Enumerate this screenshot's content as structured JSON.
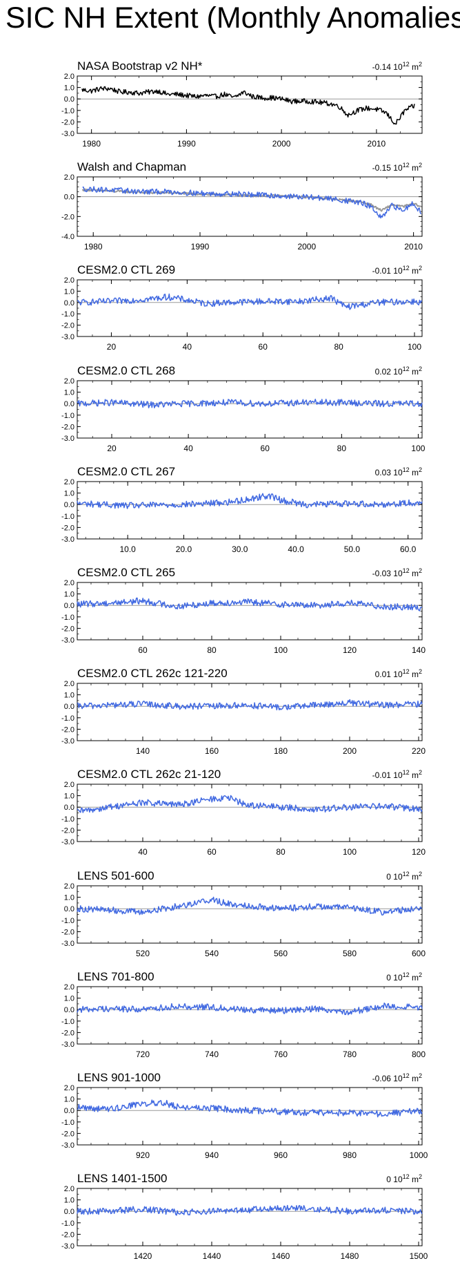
{
  "figure": {
    "title": "SIC NH Extent (Monthly Anomalies)",
    "unit": "10",
    "unit_exp": "12",
    "unit_tail": " m",
    "unit_sq": "2"
  },
  "colors": {
    "obs": "#000000",
    "model": "#4169e1",
    "smooth": "#999999",
    "zero": "#999999"
  },
  "chart_data": [
    {
      "type": "line",
      "title": "NASA Bootstrap v2 NH*",
      "trend": "-0.14",
      "x_range": [
        1978.5,
        2014.8
      ],
      "ylim": [
        -3.0,
        2.0
      ],
      "yticks": [
        "2.0",
        "1.0",
        "0.0",
        "-1.0",
        "-2.0",
        "-3.0"
      ],
      "xticks": [
        1980,
        1990,
        2000,
        2010
      ],
      "xtick_labels": [
        "1980",
        "1990",
        "2000",
        "2010"
      ],
      "series": [
        {
          "color": "obs",
          "x": [
            1979,
            1980,
            1981,
            1982,
            1983,
            1984,
            1985,
            1986,
            1987,
            1988,
            1989,
            1990,
            1991,
            1992,
            1993,
            1994,
            1995,
            1996,
            1997,
            1998,
            1999,
            2000,
            2001,
            2002,
            2003,
            2004,
            2005,
            2006,
            2007,
            2008,
            2009,
            2010,
            2011,
            2012,
            2013,
            2014
          ],
          "y": [
            0.8,
            0.7,
            0.9,
            0.9,
            0.6,
            0.6,
            0.5,
            0.6,
            0.7,
            0.4,
            0.4,
            0.3,
            0.2,
            0.3,
            0.2,
            0.4,
            0.1,
            0.6,
            0.2,
            0.1,
            0.1,
            0.0,
            -0.2,
            -0.2,
            -0.2,
            -0.3,
            -0.4,
            -0.6,
            -1.4,
            -1.0,
            -0.8,
            -0.9,
            -1.2,
            -2.2,
            -1.0,
            -0.6
          ]
        }
      ]
    },
    {
      "type": "line",
      "title": "Walsh and Chapman",
      "trend": "-0.15",
      "x_range": [
        1978.5,
        2010.8
      ],
      "ylim": [
        -4.0,
        2.0
      ],
      "yticks": [
        "2.0",
        "0.0",
        "-2.0",
        "-4.0"
      ],
      "xticks": [
        1980,
        1990,
        2000,
        2010
      ],
      "xtick_labels": [
        "1980",
        "1990",
        "2000",
        "2010"
      ],
      "series": [
        {
          "color": "smooth",
          "x": [
            1979,
            1981,
            1983,
            1985,
            1987,
            1989,
            1991,
            1993,
            1995,
            1997,
            1999,
            2001,
            2003,
            2005,
            2006,
            2007,
            2008,
            2009,
            2010,
            2010.7
          ],
          "y": [
            0.7,
            0.6,
            0.5,
            0.4,
            0.4,
            0.3,
            0.2,
            0.2,
            0.1,
            0.1,
            0.0,
            -0.1,
            -0.3,
            -0.5,
            -0.8,
            -1.4,
            -0.8,
            -1.0,
            -0.7,
            -1.0
          ]
        },
        {
          "color": "model",
          "x": [
            1979,
            1981,
            1983,
            1985,
            1987,
            1989,
            1991,
            1993,
            1995,
            1997,
            1999,
            2001,
            2003,
            2005,
            2006,
            2007,
            2008,
            2009,
            2010,
            2010.7
          ],
          "y": [
            0.8,
            0.7,
            0.6,
            0.5,
            0.5,
            0.4,
            0.3,
            0.3,
            0.2,
            0.1,
            0.0,
            -0.1,
            -0.3,
            -0.6,
            -1.0,
            -2.2,
            -0.9,
            -1.4,
            -0.6,
            -1.6
          ]
        }
      ]
    },
    {
      "type": "line",
      "title": "CESM2.0 CTL 269",
      "trend": "-0.01",
      "x_range": [
        11,
        102
      ],
      "ylim": [
        -3.0,
        2.0
      ],
      "yticks": [
        "2.0",
        "1.0",
        "0.0",
        "-1.0",
        "-2.0",
        "-3.0"
      ],
      "xticks": [
        20,
        40,
        60,
        80,
        100
      ],
      "xtick_labels": [
        "20",
        "40",
        "60",
        "80",
        "100"
      ],
      "series": [
        {
          "color": "model",
          "x": [
            11,
            20,
            30,
            35,
            40,
            45,
            50,
            60,
            70,
            78,
            82,
            90,
            100,
            102
          ],
          "y": [
            0.0,
            0.1,
            0.3,
            0.5,
            0.2,
            -0.1,
            0.0,
            0.1,
            0.1,
            0.4,
            -0.4,
            0.0,
            0.1,
            0.0
          ]
        }
      ]
    },
    {
      "type": "line",
      "title": "CESM2.0 CTL 268",
      "trend": "0.02",
      "x_range": [
        11,
        101
      ],
      "ylim": [
        -3.0,
        2.0
      ],
      "yticks": [
        "2.0",
        "1.0",
        "0.0",
        "-1.0",
        "-2.0",
        "-3.0"
      ],
      "xticks": [
        20,
        40,
        60,
        80,
        100
      ],
      "xtick_labels": [
        "20",
        "40",
        "60",
        "80",
        "100"
      ],
      "series": [
        {
          "color": "model",
          "x": [
            11,
            20,
            30,
            40,
            50,
            60,
            70,
            80,
            90,
            101
          ],
          "y": [
            0.0,
            0.1,
            -0.1,
            0.0,
            0.1,
            0.0,
            0.1,
            0.1,
            0.0,
            0.0
          ]
        }
      ]
    },
    {
      "type": "line",
      "title": "CESM2.0 CTL 267",
      "trend": "0.03",
      "x_range": [
        1,
        62.5
      ],
      "ylim": [
        -3.0,
        2.0
      ],
      "yticks": [
        "2.0",
        "1.0",
        "0.0",
        "-1.0",
        "-2.0",
        "-3.0"
      ],
      "xticks": [
        10,
        20,
        30,
        40,
        50,
        60
      ],
      "xtick_labels": [
        "10.0",
        "20.0",
        "30.0",
        "40.0",
        "50.0",
        "60.0"
      ],
      "series": [
        {
          "color": "model",
          "x": [
            1,
            10,
            20,
            28,
            32,
            35,
            38,
            42,
            50,
            55,
            62.5
          ],
          "y": [
            0.1,
            -0.1,
            0.0,
            0.2,
            0.5,
            0.8,
            0.3,
            0.0,
            0.1,
            0.0,
            0.2
          ]
        }
      ]
    },
    {
      "type": "line",
      "title": "CESM2.0 CTL 265",
      "trend": "-0.03",
      "x_range": [
        41,
        141
      ],
      "ylim": [
        -3.0,
        2.0
      ],
      "yticks": [
        "2.0",
        "1.0",
        "0.0",
        "-1.0",
        "-2.0",
        "-3.0"
      ],
      "xticks": [
        60,
        80,
        100,
        120,
        140
      ],
      "xtick_labels": [
        "60",
        "80",
        "100",
        "120",
        "140"
      ],
      "series": [
        {
          "color": "model",
          "x": [
            41,
            50,
            60,
            70,
            80,
            90,
            100,
            110,
            120,
            130,
            141
          ],
          "y": [
            0.1,
            0.2,
            0.4,
            -0.1,
            0.2,
            0.3,
            0.1,
            0.0,
            0.2,
            -0.1,
            -0.2
          ]
        }
      ]
    },
    {
      "type": "line",
      "title": "CESM2.0 CTL 262c 121-220",
      "trend": "0.01",
      "x_range": [
        121,
        221
      ],
      "ylim": [
        -3.0,
        2.0
      ],
      "yticks": [
        "2.0",
        "1.0",
        "0.0",
        "-1.0",
        "-2.0",
        "-3.0"
      ],
      "xticks": [
        140,
        160,
        180,
        200,
        220
      ],
      "xtick_labels": [
        "140",
        "160",
        "180",
        "200",
        "220"
      ],
      "series": [
        {
          "color": "model",
          "x": [
            121,
            130,
            140,
            150,
            160,
            170,
            180,
            190,
            200,
            210,
            221
          ],
          "y": [
            0.0,
            0.1,
            0.2,
            0.0,
            0.0,
            0.1,
            -0.1,
            0.1,
            0.3,
            0.1,
            0.2
          ]
        }
      ]
    },
    {
      "type": "line",
      "title": "CESM2.0 CTL 262c 21-120",
      "trend": "-0.01",
      "x_range": [
        21,
        121
      ],
      "ylim": [
        -3.0,
        2.0
      ],
      "yticks": [
        "2.0",
        "1.0",
        "0.0",
        "-1.0",
        "-2.0",
        "-3.0"
      ],
      "xticks": [
        40,
        60,
        80,
        100,
        120
      ],
      "xtick_labels": [
        "40",
        "60",
        "80",
        "100",
        "120"
      ],
      "series": [
        {
          "color": "model",
          "x": [
            21,
            30,
            40,
            50,
            60,
            65,
            70,
            80,
            90,
            100,
            110,
            121
          ],
          "y": [
            -0.4,
            0.0,
            0.4,
            0.2,
            0.7,
            0.8,
            0.2,
            0.0,
            -0.2,
            0.0,
            0.1,
            -0.2
          ]
        }
      ]
    },
    {
      "type": "line",
      "title": "LENS 501-600",
      "trend": "0",
      "x_range": [
        501,
        601
      ],
      "ylim": [
        -3.0,
        2.0
      ],
      "yticks": [
        "2.0",
        "1.0",
        "0.0",
        "-1.0",
        "-2.0",
        "-3.0"
      ],
      "xticks": [
        520,
        540,
        560,
        580,
        600
      ],
      "xtick_labels": [
        "520",
        "540",
        "560",
        "580",
        "600"
      ],
      "series": [
        {
          "color": "model",
          "x": [
            501,
            510,
            520,
            530,
            540,
            545,
            550,
            560,
            570,
            580,
            590,
            601
          ],
          "y": [
            0.0,
            -0.1,
            -0.3,
            0.2,
            0.8,
            0.4,
            0.3,
            0.0,
            0.2,
            0.1,
            -0.3,
            0.1
          ]
        }
      ]
    },
    {
      "type": "line",
      "title": "LENS 701-800",
      "trend": "0",
      "x_range": [
        701,
        801
      ],
      "ylim": [
        -3.0,
        2.0
      ],
      "yticks": [
        "2.0",
        "1.0",
        "0.0",
        "-1.0",
        "-2.0",
        "-3.0"
      ],
      "xticks": [
        720,
        740,
        760,
        780,
        800
      ],
      "xtick_labels": [
        "720",
        "740",
        "760",
        "780",
        "800"
      ],
      "series": [
        {
          "color": "model",
          "x": [
            701,
            710,
            720,
            730,
            740,
            750,
            760,
            770,
            780,
            790,
            801
          ],
          "y": [
            0.0,
            0.1,
            0.0,
            0.3,
            0.2,
            0.0,
            -0.1,
            0.1,
            -0.2,
            0.3,
            0.2
          ]
        }
      ]
    },
    {
      "type": "line",
      "title": "LENS 901-1000",
      "trend": "-0.06",
      "x_range": [
        901,
        1001
      ],
      "ylim": [
        -3.0,
        2.0
      ],
      "yticks": [
        "2.0",
        "1.0",
        "0.0",
        "-1.0",
        "-2.0",
        "-3.0"
      ],
      "xticks": [
        920,
        940,
        960,
        980,
        1000
      ],
      "xtick_labels": [
        "920",
        "940",
        "960",
        "980",
        "1000"
      ],
      "series": [
        {
          "color": "model",
          "x": [
            901,
            910,
            920,
            926,
            930,
            940,
            950,
            960,
            970,
            980,
            990,
            1001
          ],
          "y": [
            0.3,
            0.1,
            0.6,
            0.7,
            0.3,
            0.2,
            0.0,
            -0.1,
            -0.2,
            -0.2,
            -0.3,
            0.0
          ]
        }
      ]
    },
    {
      "type": "line",
      "title": "LENS 1401-1500",
      "trend": "0",
      "x_range": [
        1401,
        1501
      ],
      "ylim": [
        -3.0,
        2.0
      ],
      "yticks": [
        "2.0",
        "1.0",
        "0.0",
        "-1.0",
        "-2.0",
        "-3.0"
      ],
      "xticks": [
        1420,
        1440,
        1460,
        1480,
        1500
      ],
      "xtick_labels": [
        "1420",
        "1440",
        "1460",
        "1480",
        "1500"
      ],
      "series": [
        {
          "color": "model",
          "x": [
            1401,
            1410,
            1420,
            1430,
            1440,
            1450,
            1460,
            1470,
            1480,
            1490,
            1501
          ],
          "y": [
            0.0,
            0.0,
            0.2,
            -0.1,
            0.0,
            0.1,
            0.3,
            0.2,
            0.0,
            0.1,
            0.0
          ]
        }
      ]
    }
  ]
}
